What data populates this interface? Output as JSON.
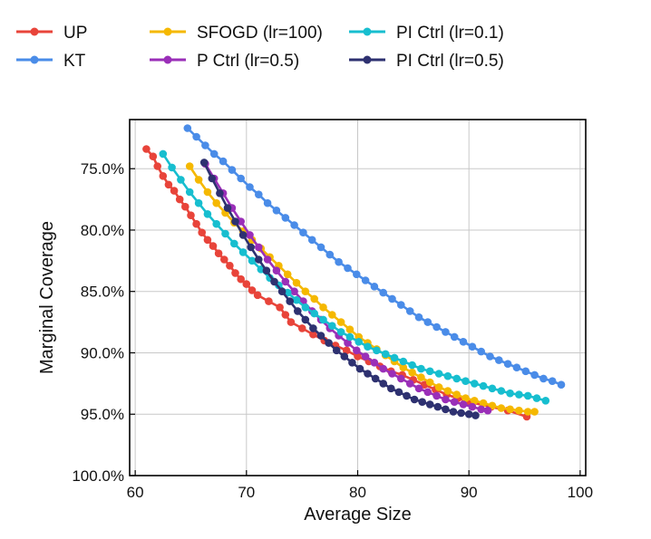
{
  "chart_data": {
    "type": "line",
    "title": "",
    "xlabel": "Average Size",
    "ylabel": "Marginal Coverage",
    "xlim": [
      59.5,
      100.5
    ],
    "ylim": [
      100,
      71
    ],
    "y_inverted": true,
    "xticks": [
      60,
      70,
      80,
      90,
      100
    ],
    "yticks": [
      75,
      80,
      85,
      90,
      95,
      100
    ],
    "ytick_labels": [
      "75.0%",
      "80.0%",
      "85.0%",
      "90.0%",
      "95.0%",
      "100.0%"
    ],
    "grid": true,
    "legend_position": "top",
    "series": [
      {
        "name": "UP",
        "color": "#e8443a",
        "x": [
          61.0,
          61.6,
          62.0,
          62.5,
          63.0,
          63.5,
          64.0,
          64.5,
          65.0,
          65.5,
          66.0,
          66.5,
          67.0,
          67.5,
          68.0,
          68.5,
          69.0,
          69.5,
          70.0,
          70.5,
          71.0,
          72.0,
          73.0,
          73.5,
          74.0,
          75.0,
          76.0,
          77.0,
          78.0,
          79.0,
          80.0,
          81.0,
          82.0,
          83.0,
          84.0,
          85.0,
          86.0,
          87.0,
          88.0,
          89.0,
          90.0,
          92.0,
          93.5,
          95.2
        ],
        "y": [
          73.4,
          74.0,
          74.8,
          75.6,
          76.3,
          76.8,
          77.5,
          78.1,
          78.8,
          79.5,
          80.2,
          80.8,
          81.3,
          81.9,
          82.4,
          82.9,
          83.5,
          84.0,
          84.4,
          84.9,
          85.3,
          85.8,
          86.3,
          86.9,
          87.5,
          88.0,
          88.5,
          89.0,
          89.4,
          89.8,
          90.3,
          90.7,
          91.1,
          91.5,
          91.8,
          92.2,
          92.6,
          93.0,
          93.4,
          93.7,
          94.0,
          94.4,
          94.7,
          95.2
        ]
      },
      {
        "name": "KT",
        "color": "#4a8ce8",
        "x": [
          64.7,
          65.5,
          66.3,
          67.1,
          67.9,
          68.7,
          69.5,
          70.3,
          71.1,
          71.9,
          72.7,
          73.5,
          74.3,
          75.1,
          75.9,
          76.7,
          77.5,
          78.3,
          79.1,
          79.9,
          80.7,
          81.5,
          82.3,
          83.1,
          83.9,
          84.7,
          85.5,
          86.3,
          87.1,
          87.9,
          88.7,
          89.5,
          90.3,
          91.1,
          91.9,
          92.7,
          93.5,
          94.3,
          95.1,
          95.9,
          96.7,
          97.5,
          98.3
        ],
        "y": [
          71.7,
          72.4,
          73.1,
          73.8,
          74.4,
          75.1,
          75.8,
          76.5,
          77.1,
          77.8,
          78.4,
          79.0,
          79.6,
          80.2,
          80.8,
          81.4,
          82.0,
          82.6,
          83.1,
          83.6,
          84.1,
          84.6,
          85.1,
          85.6,
          86.1,
          86.6,
          87.1,
          87.5,
          87.9,
          88.3,
          88.7,
          89.1,
          89.5,
          89.9,
          90.3,
          90.6,
          90.9,
          91.2,
          91.5,
          91.8,
          92.1,
          92.3,
          92.6
        ]
      },
      {
        "name": "SFOGD (lr=100)",
        "color": "#f5b800",
        "x": [
          64.9,
          65.7,
          66.5,
          67.3,
          68.1,
          68.9,
          69.7,
          70.5,
          71.3,
          72.1,
          72.9,
          73.7,
          74.5,
          75.3,
          76.1,
          76.9,
          77.7,
          78.5,
          79.3,
          80.1,
          80.9,
          81.7,
          82.5,
          83.3,
          84.1,
          84.9,
          85.7,
          86.5,
          87.3,
          88.1,
          88.9,
          89.7,
          90.5,
          91.3,
          92.1,
          92.9,
          93.7,
          94.5,
          95.3,
          95.9
        ],
        "y": [
          74.8,
          75.9,
          76.9,
          77.8,
          78.6,
          79.4,
          80.1,
          80.8,
          81.5,
          82.2,
          82.9,
          83.6,
          84.3,
          85.0,
          85.6,
          86.3,
          86.9,
          87.5,
          88.1,
          88.7,
          89.2,
          89.7,
          90.2,
          90.7,
          91.2,
          91.6,
          92.0,
          92.4,
          92.8,
          93.1,
          93.4,
          93.7,
          93.9,
          94.1,
          94.3,
          94.5,
          94.6,
          94.7,
          94.8,
          94.8
        ]
      },
      {
        "name": "P Ctrl (lr=0.5)",
        "color": "#9a2fb8",
        "x": [
          66.3,
          67.1,
          67.9,
          68.7,
          69.5,
          70.3,
          71.1,
          71.9,
          72.7,
          73.5,
          74.3,
          75.1,
          75.9,
          76.7,
          77.5,
          78.3,
          79.1,
          79.9,
          80.7,
          81.5,
          82.3,
          83.1,
          83.9,
          84.7,
          85.5,
          86.3,
          87.1,
          87.9,
          88.7,
          89.5,
          90.3,
          91.1,
          91.7
        ],
        "y": [
          74.6,
          75.8,
          77.0,
          78.2,
          79.3,
          80.4,
          81.4,
          82.4,
          83.3,
          84.2,
          85.0,
          85.8,
          86.6,
          87.3,
          88.0,
          88.6,
          89.2,
          89.8,
          90.3,
          90.8,
          91.3,
          91.7,
          92.1,
          92.5,
          92.9,
          93.2,
          93.5,
          93.8,
          94.0,
          94.2,
          94.4,
          94.6,
          94.7
        ]
      },
      {
        "name": "PI Ctrl (lr=0.1)",
        "color": "#17becf",
        "x": [
          62.5,
          63.3,
          64.1,
          64.9,
          65.7,
          66.5,
          67.3,
          68.1,
          68.9,
          69.7,
          70.5,
          71.3,
          72.1,
          72.9,
          73.7,
          74.5,
          75.3,
          76.1,
          76.9,
          77.7,
          78.5,
          79.3,
          80.1,
          80.9,
          81.7,
          82.5,
          83.3,
          84.1,
          84.9,
          85.7,
          86.5,
          87.3,
          88.1,
          88.9,
          89.7,
          90.5,
          91.3,
          92.1,
          92.9,
          93.7,
          94.5,
          95.3,
          96.1,
          96.9
        ],
        "y": [
          73.8,
          74.9,
          75.9,
          76.9,
          77.8,
          78.7,
          79.5,
          80.3,
          81.1,
          81.8,
          82.5,
          83.2,
          83.9,
          84.5,
          85.1,
          85.7,
          86.3,
          86.8,
          87.3,
          87.8,
          88.3,
          88.7,
          89.1,
          89.5,
          89.8,
          90.1,
          90.4,
          90.7,
          91.0,
          91.3,
          91.5,
          91.7,
          91.9,
          92.1,
          92.3,
          92.5,
          92.7,
          92.9,
          93.1,
          93.3,
          93.4,
          93.5,
          93.7,
          93.9
        ]
      },
      {
        "name": "PI Ctrl (lr=0.5)",
        "color": "#2e3170",
        "x": [
          66.2,
          66.9,
          67.6,
          68.3,
          69.0,
          69.7,
          70.4,
          71.1,
          71.8,
          72.5,
          73.2,
          73.9,
          74.6,
          75.3,
          76.0,
          76.7,
          77.4,
          78.1,
          78.8,
          79.5,
          80.2,
          80.9,
          81.6,
          82.3,
          83.0,
          83.7,
          84.4,
          85.1,
          85.8,
          86.5,
          87.2,
          87.9,
          88.6,
          89.3,
          90.0,
          90.6
        ],
        "y": [
          74.5,
          75.8,
          77.0,
          78.2,
          79.3,
          80.4,
          81.4,
          82.4,
          83.3,
          84.2,
          85.0,
          85.8,
          86.6,
          87.3,
          88.0,
          88.6,
          89.2,
          89.8,
          90.3,
          90.8,
          91.3,
          91.7,
          92.1,
          92.5,
          92.9,
          93.2,
          93.5,
          93.8,
          94.0,
          94.2,
          94.4,
          94.6,
          94.8,
          94.9,
          95.0,
          95.1
        ]
      }
    ]
  }
}
